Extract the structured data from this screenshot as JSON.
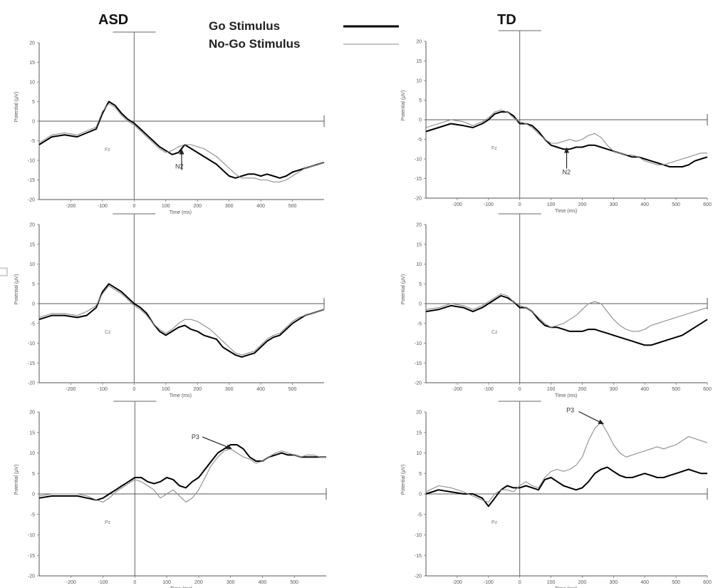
{
  "header": {
    "left_group": "ASD",
    "right_group": "TD",
    "legend": [
      {
        "label": "Go Stimulus",
        "color": "#000000",
        "width": 3
      },
      {
        "label": "No-Go Stimulus",
        "color": "#8c8c8c",
        "width": 1
      }
    ]
  },
  "watermark": "nuscript",
  "chart_data": [
    {
      "type": "line",
      "group": "ASD",
      "electrode": "Fz",
      "xlabel": "Time (ms)",
      "ylabel": "Potential (µV)",
      "xlim": [
        -300,
        600
      ],
      "ylim": [
        -20,
        20
      ],
      "xticks": [
        "-200",
        "-100",
        "0",
        "100",
        "200",
        "300",
        "400",
        "500"
      ],
      "yticks": [
        "20",
        "15",
        "10",
        "5",
        "0",
        "-5",
        "-10",
        "-15",
        "-20"
      ],
      "x": [
        -300,
        -260,
        -220,
        -180,
        -150,
        -120,
        -100,
        -80,
        -60,
        -40,
        -20,
        0,
        20,
        40,
        60,
        80,
        100,
        120,
        140,
        160,
        180,
        200,
        220,
        240,
        260,
        280,
        300,
        320,
        340,
        360,
        380,
        400,
        420,
        440,
        460,
        480,
        500,
        520,
        540,
        560,
        580,
        600
      ],
      "series": [
        {
          "name": "Go Stimulus",
          "values": [
            -6,
            -4,
            -3.5,
            -4,
            -3,
            -2,
            2,
            5,
            4,
            2,
            0.5,
            -0.5,
            -2,
            -3.5,
            -5,
            -6.5,
            -7.5,
            -8.5,
            -8,
            -6,
            -7,
            -8,
            -9,
            -10,
            -11,
            -12.5,
            -14,
            -14.5,
            -14,
            -13.5,
            -13.5,
            -14,
            -13.5,
            -14,
            -14.5,
            -14,
            -13,
            -12.5,
            -12,
            -11.5,
            -11,
            -10.5
          ]
        },
        {
          "name": "No-Go Stimulus",
          "values": [
            -5.5,
            -3.5,
            -3,
            -3.5,
            -2.5,
            -1.5,
            2.5,
            4.5,
            3.5,
            1.5,
            0,
            -1,
            -2.5,
            -4,
            -5.5,
            -7,
            -8,
            -7.5,
            -6.5,
            -6,
            -6,
            -6.5,
            -7,
            -8,
            -9,
            -10.5,
            -12,
            -13.5,
            -14.5,
            -14.5,
            -14.5,
            -15,
            -15,
            -15.5,
            -15.5,
            -15,
            -14,
            -13,
            -12,
            -11.5,
            -11,
            -10.5
          ]
        }
      ],
      "annotations": [
        {
          "label": "N2",
          "x": 150,
          "y": -7
        }
      ]
    },
    {
      "type": "line",
      "group": "ASD",
      "electrode": "Cz",
      "xlabel": "Time (ms)",
      "ylabel": "Potential (µV)",
      "xlim": [
        -300,
        600
      ],
      "ylim": [
        -20,
        20
      ],
      "xticks": [
        "-200",
        "-100",
        "0",
        "100",
        "200",
        "300",
        "400",
        "500"
      ],
      "yticks": [
        "20",
        "15",
        "10",
        "5",
        "0",
        "-5",
        "-10",
        "-15",
        "-20"
      ],
      "x": [
        -300,
        -260,
        -220,
        -180,
        -150,
        -120,
        -100,
        -80,
        -60,
        -40,
        -20,
        0,
        20,
        40,
        60,
        80,
        100,
        120,
        140,
        160,
        180,
        200,
        220,
        240,
        260,
        280,
        300,
        320,
        340,
        360,
        380,
        400,
        420,
        440,
        460,
        480,
        500,
        520,
        540,
        560,
        580,
        600
      ],
      "series": [
        {
          "name": "Go Stimulus",
          "values": [
            -4,
            -3,
            -3,
            -3.5,
            -3,
            -1,
            3,
            5,
            4,
            3,
            1.5,
            0,
            -1,
            -2.5,
            -5,
            -7,
            -8,
            -7,
            -6,
            -5.5,
            -6.5,
            -7,
            -8,
            -8.5,
            -9,
            -11,
            -12,
            -13,
            -13.5,
            -13,
            -12.5,
            -11,
            -9.5,
            -8.5,
            -8,
            -6.5,
            -5,
            -4,
            -3,
            -2.5,
            -2,
            -1.5
          ]
        },
        {
          "name": "No-Go Stimulus",
          "values": [
            -3.5,
            -2.5,
            -2.5,
            -3,
            -2,
            -0.5,
            2.5,
            4.5,
            3.5,
            2.5,
            1,
            -0.5,
            -1.5,
            -3,
            -5,
            -6.5,
            -7.5,
            -6.5,
            -5,
            -4,
            -4,
            -4.5,
            -5.5,
            -6.5,
            -8,
            -9.5,
            -11,
            -12.5,
            -13,
            -12.5,
            -12,
            -10.5,
            -9,
            -8,
            -7.5,
            -6,
            -4.5,
            -3.5,
            -3,
            -2.5,
            -2,
            -1.5
          ]
        }
      ],
      "annotations": []
    },
    {
      "type": "line",
      "group": "ASD",
      "electrode": "Pz",
      "xlabel": "Time (ms)",
      "ylabel": "Potential (µV)",
      "xlim": [
        -300,
        600
      ],
      "ylim": [
        -20,
        20
      ],
      "xticks": [
        "-200",
        "-100",
        "0",
        "100",
        "200",
        "300",
        "400",
        "500"
      ],
      "yticks": [
        "20",
        "15",
        "10",
        "5",
        "0",
        "-5",
        "-10",
        "-15",
        "-20"
      ],
      "x": [
        -300,
        -260,
        -220,
        -180,
        -150,
        -120,
        -100,
        -80,
        -60,
        -40,
        -20,
        0,
        20,
        40,
        60,
        80,
        100,
        120,
        140,
        160,
        180,
        200,
        220,
        240,
        260,
        280,
        300,
        320,
        340,
        360,
        380,
        400,
        420,
        440,
        460,
        480,
        500,
        520,
        540,
        560,
        580,
        600
      ],
      "series": [
        {
          "name": "Go Stimulus",
          "values": [
            -1,
            -0.5,
            -0.5,
            -0.5,
            -1,
            -1.5,
            -1,
            0,
            1,
            2,
            3,
            4,
            4,
            3,
            2.5,
            3,
            4,
            3.5,
            2,
            1.5,
            3,
            4,
            6,
            8,
            10,
            11,
            12,
            12,
            11,
            9,
            8,
            8,
            9,
            9.5,
            10,
            9.5,
            9.5,
            9,
            9,
            9,
            9,
            9
          ]
        },
        {
          "name": "No-Go Stimulus",
          "values": [
            -0.5,
            0,
            0,
            0,
            -0.5,
            -1.5,
            -2,
            -1,
            0.5,
            1.5,
            2.5,
            3.5,
            3,
            2,
            1,
            -1,
            0,
            1,
            -0.5,
            -2,
            -1,
            1,
            4,
            7,
            9,
            10.5,
            11,
            10,
            9,
            8.5,
            7.5,
            8,
            9,
            10,
            10.5,
            10,
            9.5,
            9,
            9.5,
            9.5,
            9,
            9
          ]
        }
      ],
      "annotations": [
        {
          "label": "P3",
          "x": 305,
          "y": 11
        }
      ]
    },
    {
      "type": "line",
      "group": "TD",
      "electrode": "Fz",
      "xlabel": "Time (ms)",
      "ylabel": "Potential (µV)",
      "xlim": [
        -300,
        600
      ],
      "ylim": [
        -20,
        20
      ],
      "xticks": [
        "-200",
        "-100",
        "0",
        "100",
        "200",
        "300",
        "400",
        "500",
        "600"
      ],
      "yticks": [
        "20",
        "15",
        "10",
        "5",
        "0",
        "-5",
        "-10",
        "-15",
        "-20"
      ],
      "x": [
        -300,
        -260,
        -220,
        -180,
        -150,
        -120,
        -100,
        -80,
        -60,
        -40,
        -20,
        0,
        20,
        40,
        60,
        80,
        100,
        120,
        140,
        160,
        180,
        200,
        220,
        240,
        260,
        280,
        300,
        320,
        340,
        360,
        380,
        400,
        420,
        440,
        460,
        480,
        500,
        520,
        540,
        560,
        580,
        600
      ],
      "series": [
        {
          "name": "Go Stimulus",
          "values": [
            -3,
            -2,
            -1,
            -1.5,
            -2,
            -1,
            0,
            1.5,
            2,
            2,
            1,
            -1,
            -1,
            -1.5,
            -3,
            -5,
            -6.5,
            -7,
            -7.5,
            -7.5,
            -7,
            -7,
            -6.5,
            -6.5,
            -7,
            -7.5,
            -8,
            -8.5,
            -9,
            -9.5,
            -9.5,
            -10,
            -10.5,
            -11,
            -11.5,
            -12,
            -12,
            -12,
            -11.5,
            -10.5,
            -10,
            -9.5
          ]
        },
        {
          "name": "No-Go Stimulus",
          "values": [
            -2,
            -1,
            0,
            -0.5,
            -1.5,
            -0.5,
            0.5,
            2,
            2.5,
            2,
            0.5,
            -0.5,
            -1,
            -2,
            -3.5,
            -5,
            -6,
            -6,
            -5.5,
            -5,
            -5.5,
            -5,
            -4,
            -3.5,
            -4.5,
            -6.5,
            -8,
            -8.5,
            -9,
            -9,
            -9.5,
            -10.5,
            -11,
            -11.5,
            -11.5,
            -11,
            -10.5,
            -10,
            -9.5,
            -9,
            -8.5,
            -8.5
          ]
        }
      ],
      "annotations": [
        {
          "label": "N2",
          "x": 150,
          "y": -7
        }
      ]
    },
    {
      "type": "line",
      "group": "TD",
      "electrode": "Cz",
      "xlabel": "Time (ms)",
      "ylabel": "Potential (µV)",
      "xlim": [
        -300,
        600
      ],
      "ylim": [
        -20,
        20
      ],
      "xticks": [
        "-200",
        "-100",
        "0",
        "100",
        "200",
        "300",
        "400",
        "500",
        "600"
      ],
      "yticks": [
        "20",
        "15",
        "10",
        "5",
        "0",
        "-5",
        "-10",
        "-15",
        "-20"
      ],
      "x": [
        -300,
        -260,
        -220,
        -180,
        -150,
        -120,
        -100,
        -80,
        -60,
        -40,
        -20,
        0,
        20,
        40,
        60,
        80,
        100,
        120,
        140,
        160,
        180,
        200,
        220,
        240,
        260,
        280,
        300,
        320,
        340,
        360,
        380,
        400,
        420,
        440,
        460,
        480,
        500,
        520,
        540,
        560,
        580,
        600
      ],
      "series": [
        {
          "name": "Go Stimulus",
          "values": [
            -2,
            -1.5,
            -0.5,
            -1,
            -2,
            -1,
            0,
            1,
            2,
            1.5,
            0.5,
            -1,
            -1,
            -2,
            -4,
            -5.5,
            -6,
            -6,
            -6.5,
            -7,
            -7,
            -7,
            -6.5,
            -6.5,
            -7,
            -7.5,
            -8,
            -8.5,
            -9,
            -9.5,
            -10,
            -10.5,
            -10.5,
            -10,
            -9.5,
            -9,
            -8.5,
            -8,
            -7,
            -6,
            -5,
            -4
          ]
        },
        {
          "name": "No-Go Stimulus",
          "values": [
            -1.5,
            -1,
            0,
            -0.5,
            -1.5,
            -0.5,
            0.5,
            1.5,
            2.5,
            2,
            0.5,
            -0.5,
            -1,
            -2,
            -3.5,
            -5,
            -6,
            -5.5,
            -5,
            -4,
            -3,
            -1.5,
            0,
            0.5,
            0,
            -2,
            -4,
            -5.5,
            -6.5,
            -7,
            -7,
            -6.5,
            -5.5,
            -5,
            -4.5,
            -4,
            -3.5,
            -3,
            -2.5,
            -2,
            -1.5,
            -1
          ]
        }
      ],
      "annotations": []
    },
    {
      "type": "line",
      "group": "TD",
      "electrode": "Pz",
      "xlabel": "Time (ms)",
      "ylabel": "Potential (µV)",
      "xlim": [
        -300,
        600
      ],
      "ylim": [
        -20,
        20
      ],
      "xticks": [
        "-200",
        "-100",
        "0",
        "100",
        "200",
        "300",
        "400",
        "500",
        "600"
      ],
      "yticks": [
        "20",
        "15",
        "10",
        "5",
        "0",
        "-5",
        "-10",
        "-15",
        "-20"
      ],
      "x": [
        -300,
        -260,
        -220,
        -180,
        -150,
        -120,
        -100,
        -80,
        -60,
        -40,
        -20,
        0,
        20,
        40,
        60,
        80,
        100,
        120,
        140,
        160,
        180,
        200,
        220,
        240,
        260,
        280,
        300,
        320,
        340,
        360,
        380,
        400,
        420,
        440,
        460,
        480,
        500,
        520,
        540,
        560,
        580,
        600
      ],
      "series": [
        {
          "name": "Go Stimulus",
          "values": [
            0,
            1,
            0.5,
            0,
            0,
            -1,
            -3,
            -1,
            1,
            2,
            1.5,
            1.5,
            2,
            1.5,
            1,
            3.5,
            4,
            3,
            2,
            1.5,
            1,
            1.5,
            3,
            5,
            6,
            6.5,
            5.5,
            4.5,
            4,
            4,
            4.5,
            5,
            4.5,
            4,
            4,
            4.5,
            5,
            5.5,
            6,
            5.5,
            5,
            5
          ]
        },
        {
          "name": "No-Go Stimulus",
          "values": [
            0.5,
            2,
            1.5,
            0.5,
            -0.5,
            -1.5,
            -2,
            0,
            1,
            1,
            0.5,
            2,
            3,
            2,
            1.5,
            4,
            5.5,
            6,
            5.5,
            6,
            7,
            9,
            13,
            16,
            17.5,
            15,
            12,
            10,
            9,
            9.5,
            10,
            10.5,
            11,
            11.5,
            11,
            11.5,
            12,
            13,
            14,
            13.5,
            13,
            12.5
          ]
        }
      ],
      "annotations": [
        {
          "label": "P3",
          "x": 270,
          "y": 17
        }
      ]
    }
  ]
}
